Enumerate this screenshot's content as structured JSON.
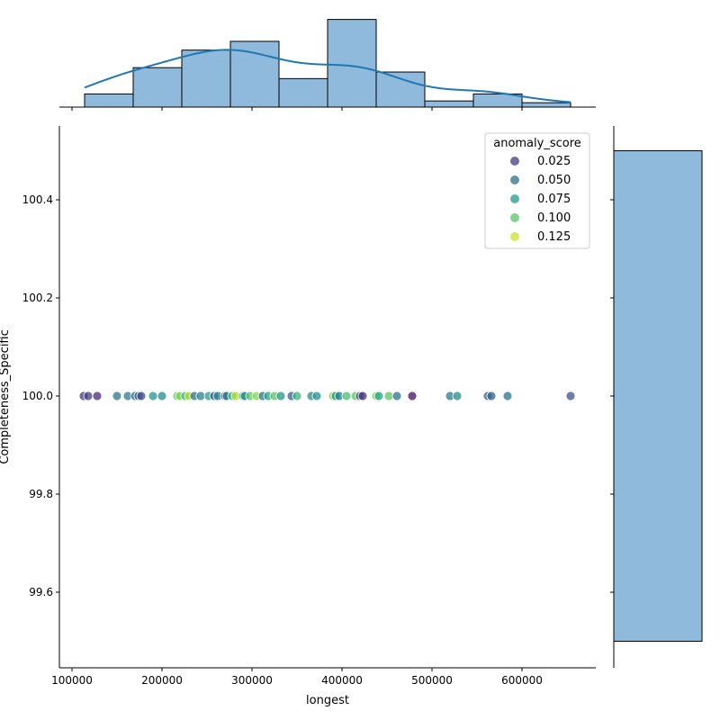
{
  "chart_data": {
    "type": "scatter",
    "xlabel": "longest",
    "ylabel": "Completeness_Specific",
    "xlim": [
      90000,
      680000
    ],
    "ylim": [
      99.45,
      100.55
    ],
    "xticks": [
      100000,
      200000,
      300000,
      400000,
      500000,
      600000
    ],
    "xtick_labels": [
      "100000",
      "200000",
      "300000",
      "400000",
      "500000",
      "600000"
    ],
    "yticks": [
      99.6,
      99.8,
      100.0,
      100.2,
      100.4
    ],
    "ytick_labels": [
      "99.6",
      "99.8",
      "100.0",
      "100.2",
      "100.4"
    ],
    "grid": false,
    "legend": {
      "title": "anomaly_score",
      "placement": "top-right",
      "entries": [
        {
          "label": "0.025",
          "value": 0.025
        },
        {
          "label": "0.050",
          "value": 0.05
        },
        {
          "label": "0.075",
          "value": 0.075
        },
        {
          "label": "0.100",
          "value": 0.1
        },
        {
          "label": "0.125",
          "value": 0.125
        }
      ]
    },
    "hue_range": [
      0.0,
      0.135
    ],
    "points": [
      [
        113000,
        0.02
      ],
      [
        118000,
        0.025
      ],
      [
        128000,
        0.015
      ],
      [
        150000,
        0.05
      ],
      [
        162000,
        0.055
      ],
      [
        170000,
        0.045
      ],
      [
        174000,
        0.04
      ],
      [
        177000,
        0.03
      ],
      [
        190000,
        0.07
      ],
      [
        200000,
        0.065
      ],
      [
        217000,
        0.1
      ],
      [
        220000,
        0.11
      ],
      [
        226000,
        0.09
      ],
      [
        230000,
        0.12
      ],
      [
        236000,
        0.05
      ],
      [
        243000,
        0.06
      ],
      [
        252000,
        0.075
      ],
      [
        258000,
        0.04
      ],
      [
        262000,
        0.06
      ],
      [
        270000,
        0.02
      ],
      [
        272000,
        0.06
      ],
      [
        278000,
        0.09
      ],
      [
        282000,
        0.12
      ],
      [
        290000,
        0.08
      ],
      [
        292000,
        0.065
      ],
      [
        298000,
        0.1
      ],
      [
        305000,
        0.11
      ],
      [
        312000,
        0.05
      ],
      [
        318000,
        0.08
      ],
      [
        325000,
        0.1
      ],
      [
        332000,
        0.07
      ],
      [
        344000,
        0.04
      ],
      [
        350000,
        0.09
      ],
      [
        366000,
        0.065
      ],
      [
        372000,
        0.07
      ],
      [
        390000,
        0.11
      ],
      [
        393000,
        0.07
      ],
      [
        397000,
        0.06
      ],
      [
        405000,
        0.095
      ],
      [
        415000,
        0.1
      ],
      [
        420000,
        0.03
      ],
      [
        423000,
        0.02
      ],
      [
        438000,
        0.105
      ],
      [
        441000,
        0.08
      ],
      [
        452000,
        0.1
      ],
      [
        461000,
        0.05
      ],
      [
        478000,
        0.005
      ],
      [
        520000,
        0.055
      ],
      [
        528000,
        0.065
      ],
      [
        562000,
        0.045
      ],
      [
        566000,
        0.04
      ],
      [
        584000,
        0.05
      ],
      [
        654000,
        0.035
      ]
    ],
    "x_histogram": {
      "bin_edges": [
        114000,
        168000,
        222000,
        276000,
        330000,
        384000,
        438000,
        492000,
        546000,
        600000,
        654000
      ],
      "counts": [
        3,
        9,
        13,
        15,
        6.5,
        20,
        8,
        1.4,
        3,
        1
      ]
    },
    "y_histogram": {
      "bin_edges": [
        99.5,
        100.5
      ],
      "counts": [
        1
      ]
    },
    "colors": {
      "hist_fill": "#8fbadb",
      "kde": "#1f77b4"
    }
  }
}
